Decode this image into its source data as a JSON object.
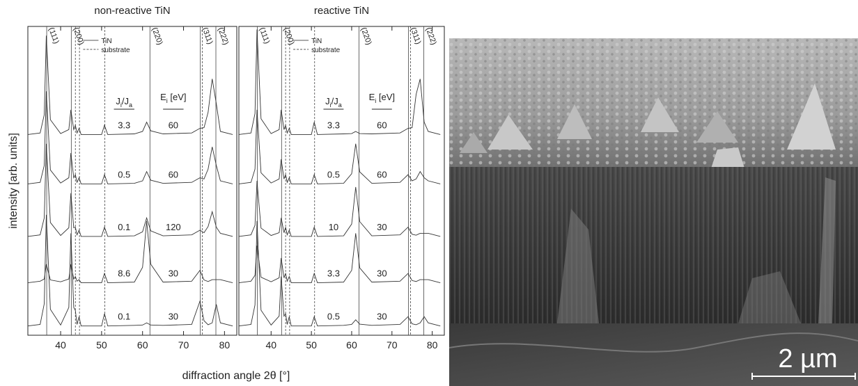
{
  "chart_data": [
    {
      "type": "line",
      "title": "non-reactive TiN",
      "ylabel": "intensity [arb. units]",
      "xlabel": "diffraction angle 2θ [°]",
      "color": "#333333",
      "x": [
        32,
        35,
        36,
        36.5,
        37.5,
        40,
        42,
        42.5,
        43.2,
        43.6,
        44,
        44.5,
        45,
        50,
        50.7,
        51.5,
        58,
        60,
        61,
        62,
        65,
        72,
        74,
        75,
        76,
        77,
        78,
        79,
        82
      ],
      "xlim": [
        32,
        83
      ],
      "xticks": [
        40,
        50,
        60,
        70,
        80
      ],
      "ylim": [
        0,
        10
      ],
      "reference_lines": {
        "tin": [
          36.6,
          42.6,
          61.8,
          74.1,
          77.9
        ],
        "substrate": [
          43.6,
          44.6,
          50.8,
          74.6
        ]
      },
      "peak_labels": [
        "(111)",
        "(200)",
        "(220)",
        "(311)",
        "(222)"
      ],
      "legend": [
        "TiN",
        "substrate"
      ],
      "column_headers": {
        "j_main": "J",
        "j_sub": "i",
        "j_main2": "/J",
        "j_sub2": "a",
        "e_main": "E",
        "e_sub": "i",
        "e_unit": " [eV]"
      },
      "series": [
        {
          "j": "3.3",
          "e": "60",
          "values": [
            6.5,
            6.55,
            7.14,
            9.7,
            6.98,
            6.53,
            6.66,
            7.3,
            6.66,
            6.8,
            6.55,
            6.7,
            6.5,
            6.5,
            6.8,
            6.5,
            6.52,
            6.6,
            6.9,
            6.62,
            6.52,
            6.55,
            6.7,
            6.72,
            7.22,
            8.3,
            7.5,
            6.6,
            6.5
          ]
        },
        {
          "j": "0.5",
          "e": "60",
          "values": [
            4.9,
            4.95,
            5.5,
            7.9,
            5.35,
            4.93,
            5.1,
            5.9,
            5.1,
            5.2,
            4.95,
            5.1,
            4.9,
            4.9,
            5.2,
            4.9,
            4.92,
            5.0,
            5.3,
            5.02,
            4.92,
            4.95,
            5.1,
            5.06,
            5.38,
            6.1,
            5.5,
            5.0,
            4.9
          ]
        },
        {
          "j": "0.1",
          "e": "120",
          "values": [
            3.2,
            3.25,
            3.8,
            6.2,
            3.65,
            3.23,
            3.48,
            4.6,
            3.48,
            3.5,
            3.25,
            3.4,
            3.2,
            3.2,
            3.5,
            3.2,
            3.22,
            3.35,
            3.8,
            3.38,
            3.22,
            3.25,
            3.4,
            3.32,
            3.52,
            4.0,
            3.5,
            3.3,
            3.2
          ]
        },
        {
          "j": "8.6",
          "e": "30",
          "values": [
            1.7,
            1.75,
            1.82,
            2.3,
            1.79,
            1.73,
            1.82,
            2.3,
            1.82,
            1.9,
            1.75,
            1.8,
            1.7,
            1.7,
            2.0,
            1.7,
            1.72,
            2.2,
            3.7,
            2.3,
            1.72,
            1.75,
            2.1,
            1.79,
            1.74,
            1.8,
            1.8,
            1.8,
            1.7
          ]
        },
        {
          "j": "0.1",
          "e": "30",
          "values": [
            0.3,
            0.35,
            1.02,
            3.9,
            0.84,
            0.33,
            0.9,
            3.3,
            0.9,
            0.8,
            0.35,
            0.6,
            0.3,
            0.3,
            0.7,
            0.3,
            0.32,
            0.33,
            0.4,
            0.33,
            0.32,
            0.35,
            1.1,
            0.47,
            0.34,
            0.4,
            1.0,
            0.4,
            0.3
          ]
        }
      ]
    },
    {
      "type": "line",
      "title": "reactive TiN",
      "color": "#333333",
      "x": [
        32,
        35,
        36,
        36.5,
        37.5,
        40,
        42,
        42.5,
        43.2,
        43.6,
        44,
        44.5,
        45,
        50,
        50.7,
        51.5,
        58,
        60,
        61,
        62,
        65,
        72,
        74,
        75,
        76,
        77,
        78,
        79,
        82
      ],
      "xlim": [
        32,
        83
      ],
      "xticks": [
        40,
        50,
        60,
        70,
        80
      ],
      "ylim": [
        0,
        10
      ],
      "reference_lines": {
        "tin": [
          36.6,
          42.6,
          61.8,
          74.1,
          77.9
        ],
        "substrate": [
          43.6,
          44.6,
          50.8,
          74.6
        ]
      },
      "peak_labels": [
        "(111)",
        "(200)",
        "(220)",
        "(311)",
        "(222)"
      ],
      "legend": [
        "TiN",
        "substrate"
      ],
      "column_headers": {
        "j_main": "J",
        "j_sub": "i",
        "j_main2": "/J",
        "j_sub2": "a",
        "e_main": "E",
        "e_sub": "i",
        "e_unit": " [eV]"
      },
      "series": [
        {
          "j": "3.3",
          "e": "60",
          "values": [
            6.5,
            6.55,
            7.18,
            9.9,
            7.01,
            6.53,
            6.66,
            7.3,
            6.66,
            6.8,
            6.55,
            6.7,
            6.5,
            6.5,
            6.9,
            6.5,
            6.52,
            6.53,
            6.6,
            6.53,
            6.52,
            6.55,
            6.7,
            6.72,
            7.8,
            8.3,
            6.9,
            6.6,
            6.5
          ]
        },
        {
          "j": "0.5",
          "e": "60",
          "values": [
            4.9,
            4.95,
            5.38,
            7.3,
            5.26,
            4.93,
            5.06,
            5.7,
            5.06,
            5.2,
            4.95,
            5.1,
            4.9,
            4.9,
            5.2,
            4.9,
            4.92,
            5.23,
            6.2,
            5.29,
            4.92,
            4.95,
            5.2,
            5.0,
            5.06,
            5.3,
            5.1,
            5.0,
            4.9
          ]
        },
        {
          "j": "10",
          "e": "30",
          "values": [
            3.2,
            3.25,
            3.56,
            5.0,
            3.47,
            3.23,
            3.32,
            3.8,
            3.32,
            3.5,
            3.25,
            3.4,
            3.2,
            3.2,
            3.5,
            3.2,
            3.22,
            3.6,
            4.8,
            3.68,
            3.22,
            3.25,
            3.5,
            3.27,
            3.24,
            3.3,
            3.3,
            3.3,
            3.2
          ]
        },
        {
          "j": "3.3",
          "e": "30",
          "values": [
            1.7,
            1.75,
            1.94,
            2.9,
            1.88,
            1.73,
            1.86,
            2.5,
            1.86,
            2.0,
            1.75,
            1.9,
            1.7,
            1.7,
            2.0,
            1.7,
            1.72,
            2.1,
            3.3,
            2.18,
            1.72,
            1.75,
            2.0,
            1.77,
            1.74,
            1.8,
            1.8,
            1.8,
            1.7
          ]
        },
        {
          "j": "0.5",
          "e": "30",
          "values": [
            0.3,
            0.35,
            0.98,
            3.7,
            0.81,
            0.33,
            0.62,
            1.9,
            0.62,
            0.7,
            0.35,
            0.6,
            0.3,
            0.3,
            0.6,
            0.3,
            0.32,
            0.35,
            0.5,
            0.36,
            0.32,
            0.35,
            0.6,
            0.37,
            0.34,
            0.4,
            0.6,
            0.4,
            0.3
          ]
        }
      ]
    }
  ],
  "sem_image": {
    "scale_bar": "2 µm"
  }
}
